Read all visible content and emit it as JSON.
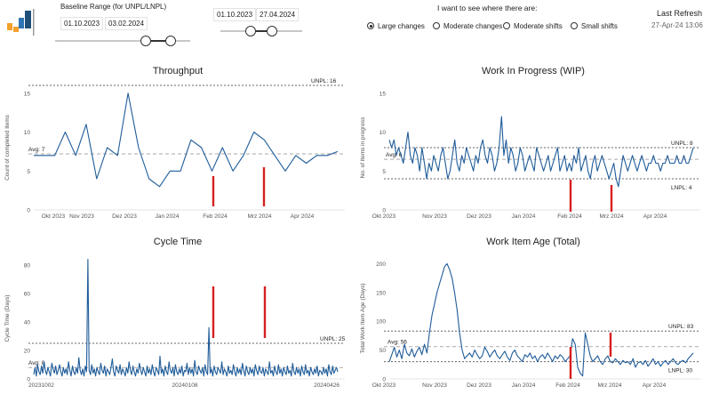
{
  "logo": {
    "colors": [
      "#2e75b6",
      "#f4a02c",
      "#1f4e79"
    ]
  },
  "baseline": {
    "label": "Baseline Range (for UNPL/LNPL)",
    "start": "01.10.2023",
    "end": "03.02.2024"
  },
  "range": {
    "start": "01.10.2023",
    "end": "27.04.2024"
  },
  "filter": {
    "label": "I want to see where there are:",
    "options": [
      "Large changes",
      "Moderate changes",
      "Moderate shifts",
      "Small shifts"
    ],
    "selected": "Large changes"
  },
  "refresh": {
    "label": "Last Refresh",
    "value": "27-Apr-24 13:06"
  },
  "colors": {
    "line": "#1f5c99",
    "marker": "#d62020",
    "ref": "#888888"
  },
  "chart_data": [
    {
      "type": "line",
      "title": "Throughput",
      "ylabel": "Count of completed items",
      "ylim": [
        0,
        16
      ],
      "yticks": [
        "0",
        "5",
        "10",
        "15"
      ],
      "xticks": [
        "Okt 2023",
        "Nov 2023",
        "Dez 2023",
        "Jan 2024",
        "Feb 2024",
        "Mrz 2024",
        "Apr 2024"
      ],
      "x": [
        0,
        1,
        2,
        3,
        4,
        5,
        6,
        7,
        8,
        9,
        10,
        11,
        12,
        13,
        14,
        15,
        16,
        17,
        18,
        19,
        20,
        21,
        22,
        23,
        24,
        25,
        26,
        27,
        28,
        29
      ],
      "values": [
        7,
        7,
        7,
        10,
        7,
        11,
        4,
        8,
        7,
        15,
        8,
        4,
        3,
        5,
        5,
        9,
        8,
        5,
        8,
        5,
        7,
        10,
        9,
        7,
        5,
        7,
        6,
        7,
        7,
        7.5
      ],
      "ref_lines": [
        {
          "label": "UNPL: 16",
          "value": 16
        },
        {
          "label": "Avg: 7",
          "value": 7.2
        }
      ],
      "markers": [
        "Feb 2024",
        "Mrz 2024"
      ]
    },
    {
      "type": "line",
      "title": "Work In Progress (WIP)",
      "ylabel": "No. of items in progress",
      "ylim": [
        0,
        16
      ],
      "yticks": [
        "0",
        "5",
        "10",
        "15"
      ],
      "xticks": [
        "Okt 2023",
        "Nov 2023",
        "Dez 2023",
        "Jan 2024",
        "Feb 2024",
        "Mrz 2024",
        "Apr 2024"
      ],
      "values": [
        9,
        8,
        9,
        7,
        8,
        7,
        6,
        8,
        10,
        7,
        6,
        8,
        7,
        5,
        8,
        6,
        4,
        6,
        5,
        7,
        6,
        5,
        7,
        8,
        6,
        4,
        5,
        7,
        9,
        6,
        5,
        7,
        6,
        8,
        7,
        6,
        5,
        7,
        6,
        8,
        9,
        7,
        6,
        8,
        7,
        5,
        6,
        8,
        12,
        7,
        9,
        6,
        8,
        7,
        5,
        6,
        8,
        7,
        5,
        6,
        7,
        6,
        5,
        8,
        7,
        6,
        5,
        6,
        7,
        5,
        6,
        7,
        8,
        5,
        6,
        7,
        5,
        6,
        5,
        7,
        6,
        8,
        5,
        6,
        7,
        5,
        4,
        6,
        7,
        5,
        6,
        7,
        6,
        5,
        4,
        5,
        6,
        4,
        3,
        5,
        7,
        6,
        5,
        6,
        7,
        6,
        5,
        6,
        7,
        6,
        5,
        6,
        6,
        7,
        6,
        6,
        5,
        6,
        6,
        7,
        6,
        6,
        6,
        7,
        6,
        6,
        7,
        6,
        6,
        7,
        8
      ],
      "ref_lines": [
        {
          "label": "UNPL: 8",
          "value": 8
        },
        {
          "label": "Avg: 6",
          "value": 6.5
        },
        {
          "label": "LNPL: 4",
          "value": 4
        }
      ],
      "markers": [
        "Feb 2024",
        "Mrz 2024"
      ]
    },
    {
      "type": "line",
      "title": "Cycle Time",
      "ylabel": "Cycle Time (Days)",
      "ylim": [
        0,
        85
      ],
      "yticks": [
        "0",
        "20",
        "40",
        "60",
        "80"
      ],
      "xticks": [
        "20231002",
        "20240108",
        "20240426"
      ],
      "values": [
        3,
        8,
        2,
        10,
        5,
        3,
        9,
        4,
        12,
        6,
        3,
        8,
        5,
        2,
        11,
        7,
        4,
        9,
        3,
        6,
        10,
        5,
        2,
        8,
        4,
        7,
        3,
        12,
        6,
        2,
        9,
        5,
        3,
        8,
        4,
        15,
        6,
        3,
        7,
        2,
        9,
        5,
        84,
        6,
        3,
        10,
        4,
        7,
        2,
        8,
        5,
        3,
        11,
        6,
        4,
        9,
        2,
        7,
        5,
        3,
        8,
        14,
        5,
        2,
        9,
        6,
        4,
        10,
        3,
        7,
        5,
        2,
        8,
        4,
        12,
        6,
        3,
        9,
        5,
        2,
        7,
        4,
        11,
        6,
        3,
        8,
        5,
        2,
        9,
        4,
        7,
        3,
        10,
        5,
        2,
        8,
        6,
        3,
        16,
        4,
        7,
        2,
        9,
        5,
        3,
        12,
        6,
        4,
        8,
        2,
        10,
        5,
        3,
        7,
        4,
        9,
        2,
        6,
        5,
        11,
        3,
        8,
        4,
        7,
        2,
        13,
        5,
        3,
        9,
        6,
        4,
        8,
        2,
        10,
        5,
        3,
        36,
        4,
        7,
        2,
        9,
        5,
        3,
        8,
        6,
        4,
        12,
        3,
        7,
        5,
        2,
        9,
        4,
        6,
        3,
        10,
        5,
        2,
        8,
        4,
        7,
        3,
        11,
        6,
        2,
        9,
        5,
        3,
        8,
        4,
        7,
        2,
        10,
        6,
        3,
        9,
        5,
        4,
        8,
        2,
        7,
        5,
        3,
        12,
        4,
        6,
        2,
        9,
        5,
        3,
        10,
        4,
        7,
        2,
        8,
        5,
        3,
        9,
        4,
        6,
        2,
        11,
        5,
        3,
        8,
        4,
        7,
        2,
        9,
        5,
        3,
        10,
        4,
        6,
        2,
        8,
        5,
        3,
        7,
        4,
        9,
        2,
        6,
        5,
        3,
        8,
        4,
        7,
        2,
        10,
        5,
        3,
        9,
        4,
        6,
        8,
        5
      ],
      "ref_lines": [
        {
          "label": "UNPL: 25",
          "value": 25
        },
        {
          "label": "Avg: 8",
          "value": 8
        }
      ],
      "markers": [
        "20240108",
        "20240426"
      ]
    },
    {
      "type": "line",
      "title": "Work Item Age (Total)",
      "ylabel": "Total Work Item Age (Days)",
      "ylim": [
        0,
        210
      ],
      "yticks": [
        "0",
        "50",
        "100",
        "150",
        "200"
      ],
      "xticks": [
        "Okt 2023",
        "Nov 2023",
        "Dez 2023",
        "Jan 2024",
        "Feb 2024",
        "Mrz 2024",
        "Apr 2024"
      ],
      "values": [
        30,
        42,
        55,
        38,
        50,
        35,
        60,
        45,
        40,
        52,
        38,
        48,
        55,
        42,
        60,
        45,
        80,
        110,
        130,
        150,
        165,
        180,
        195,
        200,
        190,
        175,
        150,
        120,
        80,
        50,
        35,
        40,
        45,
        38,
        50,
        42,
        35,
        40,
        55,
        48,
        38,
        45,
        50,
        40,
        35,
        42,
        48,
        38,
        32,
        45,
        50,
        40,
        35,
        30,
        42,
        38,
        45,
        35,
        40,
        30,
        38,
        42,
        35,
        45,
        38,
        30,
        40,
        35,
        42,
        38,
        30,
        35,
        40,
        70,
        60,
        20,
        10,
        5,
        80,
        60,
        40,
        30,
        35,
        40,
        30,
        25,
        35,
        40,
        30,
        28,
        35,
        30,
        25,
        32,
        28,
        30,
        25,
        35,
        20,
        28,
        30,
        25,
        32,
        22,
        28,
        35,
        25,
        30,
        22,
        28,
        32,
        25,
        30,
        35,
        28,
        25,
        30,
        32,
        28,
        35,
        40,
        45
      ],
      "ref_lines": [
        {
          "label": "UNPL: 83",
          "value": 83
        },
        {
          "label": "Avg: 56",
          "value": 56
        },
        {
          "label": "LNPL: 30",
          "value": 30
        }
      ],
      "markers": [
        "Feb 2024",
        "Mrz 2024"
      ]
    }
  ]
}
